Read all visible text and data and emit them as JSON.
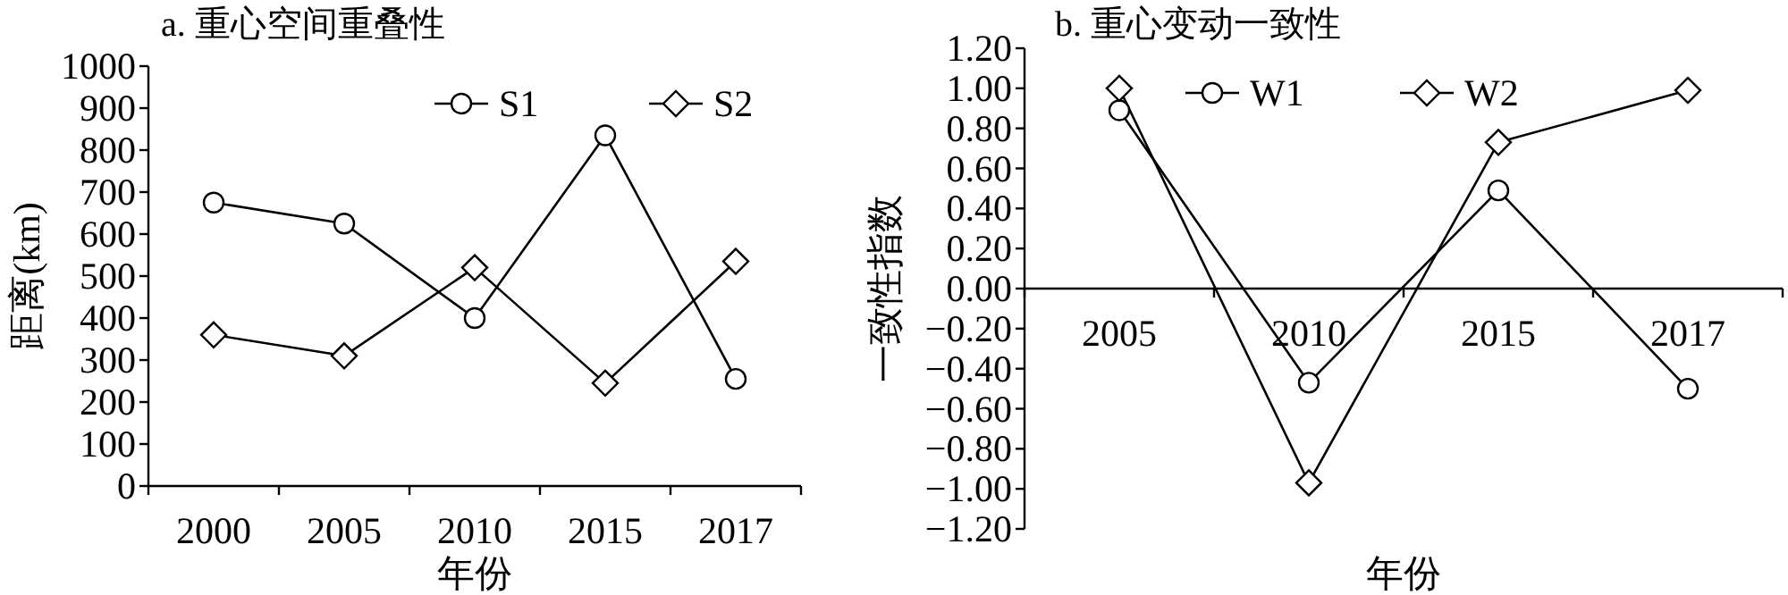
{
  "chart_data": [
    {
      "type": "line",
      "title": "a. 重心空间重叠性",
      "xlabel": "年份",
      "ylabel": "距离(km)",
      "categories": [
        "2000",
        "2005",
        "2010",
        "2015",
        "2017"
      ],
      "series": [
        {
          "name": "S1",
          "color": "#000000",
          "marker": "circle",
          "values": [
            675,
            625,
            400,
            835,
            255
          ]
        },
        {
          "name": "S2",
          "color": "#000000",
          "marker": "diamond",
          "values": [
            360,
            310,
            520,
            245,
            535
          ]
        }
      ],
      "ylim": [
        0,
        1000
      ],
      "yticks": [
        0,
        100,
        200,
        300,
        400,
        500,
        600,
        700,
        800,
        900,
        1000
      ],
      "legend": "top right",
      "grid": false,
      "line_style": "solid"
    },
    {
      "type": "line",
      "title": "b. 重心变动一致性",
      "xlabel": "年份",
      "ylabel": "一致性指数",
      "categories": [
        "2005",
        "2010",
        "2015",
        "2017"
      ],
      "series": [
        {
          "name": "W1",
          "color": "#000000",
          "marker": "circle",
          "values": [
            0.89,
            -0.47,
            0.49,
            -0.5
          ]
        },
        {
          "name": "W2",
          "color": "#000000",
          "marker": "diamond",
          "values": [
            1.0,
            -0.97,
            0.73,
            0.99
          ]
        }
      ],
      "ylim": [
        -1.2,
        1.2
      ],
      "yticks": [
        {
          "value": -1.2,
          "label": "−1.20"
        },
        {
          "value": -1.0,
          "label": "−1.00"
        },
        {
          "value": -0.8,
          "label": "−0.80"
        },
        {
          "value": -0.6,
          "label": "−0.60"
        },
        {
          "value": -0.4,
          "label": "−0.40"
        },
        {
          "value": -0.2,
          "label": "−0.20"
        },
        {
          "value": 0,
          "label": "0.00"
        },
        {
          "value": 0.2,
          "label": "0.20"
        },
        {
          "value": 0.4,
          "label": "0.40"
        },
        {
          "value": 0.6,
          "label": "0.60"
        },
        {
          "value": 0.8,
          "label": "0.80"
        },
        {
          "value": 1.0,
          "label": "1.00"
        },
        {
          "value": 1.2,
          "label": "1.20"
        }
      ],
      "legend": "top",
      "grid": false,
      "line_style": "solid"
    }
  ]
}
